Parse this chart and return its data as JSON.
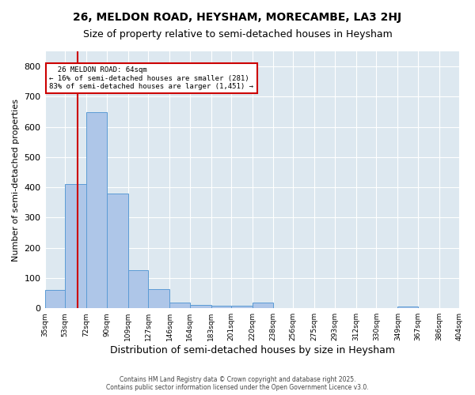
{
  "title_line1": "26, MELDON ROAD, HEYSHAM, MORECAMBE, LA3 2HJ",
  "title_line2": "Size of property relative to semi-detached houses in Heysham",
  "xlabel": "Distribution of semi-detached houses by size in Heysham",
  "ylabel": "Number of semi-detached properties",
  "property_label": "26 MELDON ROAD: 64sqm",
  "pct_smaller": 16,
  "count_smaller": 281,
  "pct_larger": 83,
  "count_larger": 1451,
  "bin_edges": [
    35,
    53,
    72,
    90,
    109,
    127,
    146,
    164,
    183,
    201,
    220,
    238,
    256,
    275,
    293,
    312,
    330,
    349,
    367,
    386,
    404
  ],
  "bin_labels": [
    "35sqm",
    "53sqm",
    "72sqm",
    "90sqm",
    "109sqm",
    "127sqm",
    "146sqm",
    "164sqm",
    "183sqm",
    "201sqm",
    "220sqm",
    "238sqm",
    "256sqm",
    "275sqm",
    "293sqm",
    "312sqm",
    "330sqm",
    "349sqm",
    "367sqm",
    "386sqm",
    "404sqm"
  ],
  "bar_heights": [
    60,
    410,
    650,
    380,
    125,
    62,
    18,
    12,
    8,
    8,
    20,
    0,
    0,
    0,
    0,
    0,
    0,
    5,
    0,
    0
  ],
  "bar_color": "#aec6e8",
  "bar_edge_color": "#5b9bd5",
  "vline_color": "#cc0000",
  "vline_x": 64,
  "annotation_box_edge_color": "#cc0000",
  "background_color": "#dde8f0",
  "ylim": [
    0,
    850
  ],
  "yticks": [
    0,
    100,
    200,
    300,
    400,
    500,
    600,
    700,
    800
  ],
  "footer_line1": "Contains HM Land Registry data © Crown copyright and database right 2025.",
  "footer_line2": "Contains public sector information licensed under the Open Government Licence v3.0."
}
